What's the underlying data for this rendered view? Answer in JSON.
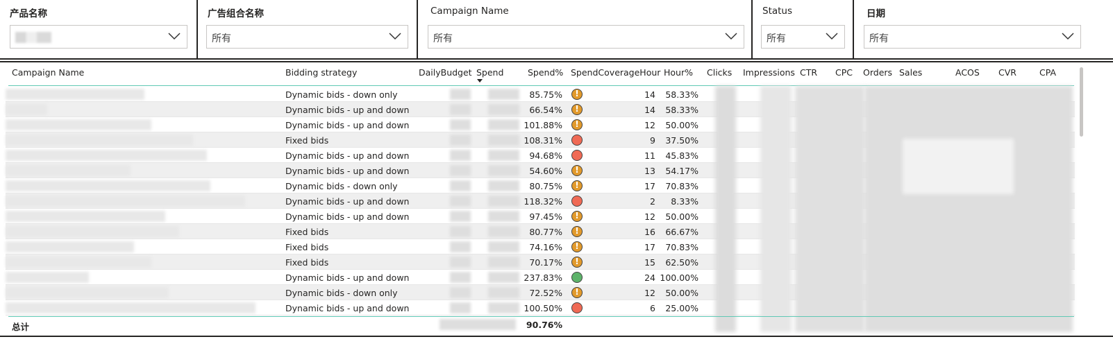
{
  "slicers": [
    {
      "title": "产品名称",
      "value": "",
      "bold": true
    },
    {
      "title": "广告组合名称",
      "value": "所有",
      "bold": true
    },
    {
      "title": "Campaign Name",
      "value": "所有",
      "bold": false
    },
    {
      "title": "Status",
      "value": "所有",
      "bold": false
    },
    {
      "title": "日期",
      "value": "所有",
      "bold": true
    }
  ],
  "table": {
    "headers": [
      "Campaign Name",
      "Bidding strategy",
      "DailyBudget",
      "Spend",
      "Spend%",
      "SpendCoverageHour",
      "Hour%",
      "Clicks",
      "Impressions",
      "CTR",
      "CPC",
      "Orders",
      "Sales",
      "ACOS",
      "CVR",
      "CPA"
    ],
    "sorted_column": "Spend",
    "rows": [
      {
        "bidding": "Dynamic bids - down only",
        "spend_pct": "85.75%",
        "status": "warn",
        "hours": "14",
        "hour_pct": "58.33%"
      },
      {
        "bidding": "Dynamic bids - up and down",
        "spend_pct": "66.54%",
        "status": "warn",
        "hours": "14",
        "hour_pct": "58.33%"
      },
      {
        "bidding": "Dynamic bids - up and down",
        "spend_pct": "101.88%",
        "status": "warn",
        "hours": "12",
        "hour_pct": "50.00%"
      },
      {
        "bidding": "Fixed bids",
        "spend_pct": "108.31%",
        "status": "bad",
        "hours": "9",
        "hour_pct": "37.50%"
      },
      {
        "bidding": "Dynamic bids - up and down",
        "spend_pct": "94.68%",
        "status": "bad",
        "hours": "11",
        "hour_pct": "45.83%"
      },
      {
        "bidding": "Dynamic bids - up and down",
        "spend_pct": "54.60%",
        "status": "warn",
        "hours": "13",
        "hour_pct": "54.17%"
      },
      {
        "bidding": "Dynamic bids - down only",
        "spend_pct": "80.75%",
        "status": "warn",
        "hours": "17",
        "hour_pct": "70.83%"
      },
      {
        "bidding": "Dynamic bids - up and down",
        "spend_pct": "118.32%",
        "status": "bad",
        "hours": "2",
        "hour_pct": "8.33%"
      },
      {
        "bidding": "Dynamic bids - up and down",
        "spend_pct": "97.45%",
        "status": "warn",
        "hours": "12",
        "hour_pct": "50.00%"
      },
      {
        "bidding": "Fixed bids",
        "spend_pct": "80.77%",
        "status": "warn",
        "hours": "16",
        "hour_pct": "66.67%"
      },
      {
        "bidding": "Fixed bids",
        "spend_pct": "74.16%",
        "status": "warn",
        "hours": "17",
        "hour_pct": "70.83%"
      },
      {
        "bidding": "Fixed bids",
        "spend_pct": "70.17%",
        "status": "warn",
        "hours": "15",
        "hour_pct": "62.50%"
      },
      {
        "bidding": "Dynamic bids - up and down",
        "spend_pct": "237.83%",
        "status": "good",
        "hours": "24",
        "hour_pct": "100.00%"
      },
      {
        "bidding": "Dynamic bids - down only",
        "spend_pct": "72.52%",
        "status": "warn",
        "hours": "12",
        "hour_pct": "50.00%"
      },
      {
        "bidding": "Dynamic bids - up and down",
        "spend_pct": "100.50%",
        "status": "bad",
        "hours": "6",
        "hour_pct": "25.00%"
      }
    ],
    "total": {
      "label": "总计",
      "spend_pct": "90.76%"
    }
  },
  "colors": {
    "accent_line": "#5fc8b4",
    "warn": "#e29a2c",
    "bad": "#f06a55",
    "good": "#5db36a"
  },
  "icons": {
    "dropdown": "chevron-down-icon",
    "warn": "warning-icon",
    "bad": "status-red-icon",
    "good": "status-green-icon"
  }
}
